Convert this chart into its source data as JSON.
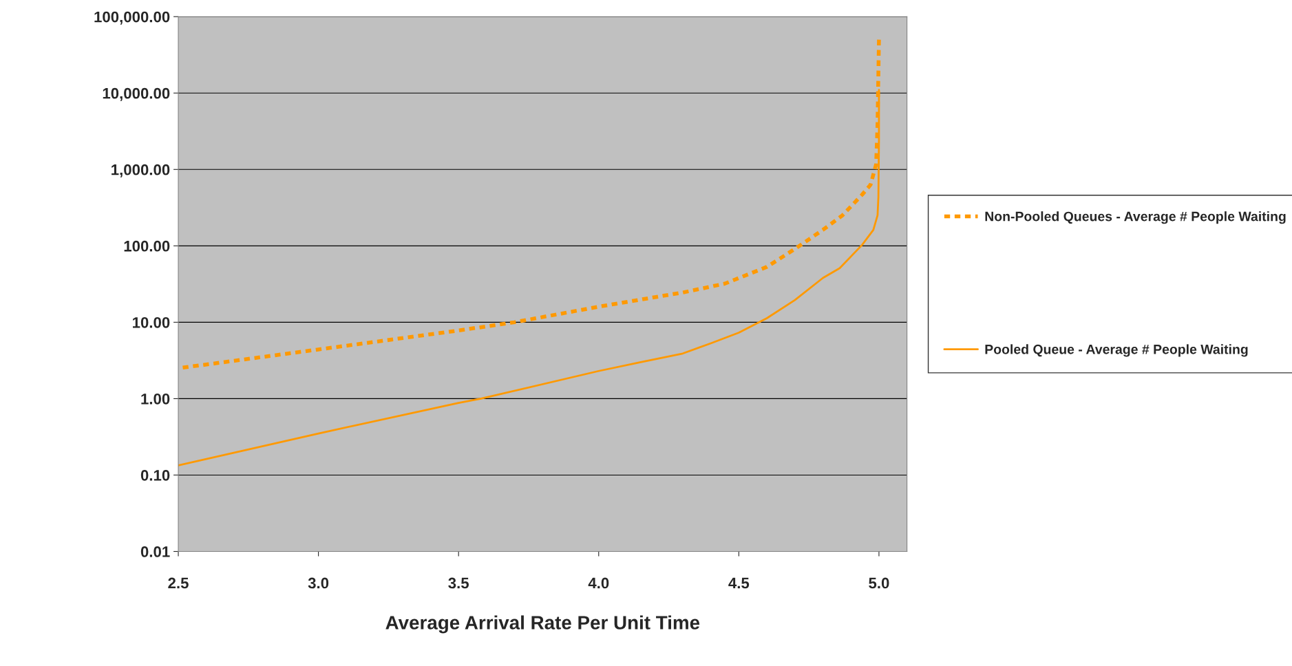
{
  "chart_data": {
    "type": "line",
    "xlabel": "Average Arrival Rate Per Unit Time",
    "log": "y",
    "grid": "y",
    "legend": "right",
    "xlim": [
      2.5,
      5.1
    ],
    "xticks": [
      2.5,
      {
        "value": 3.0,
        "label": "3.0"
      },
      3.5,
      {
        "value": 4.0,
        "label": "4.0"
      },
      4.5,
      {
        "value": 5.0,
        "label": "5.0"
      }
    ],
    "ylim": [
      0.01,
      100000
    ],
    "yticks": [
      {
        "value": 0.01,
        "label": "0.01"
      },
      {
        "value": 0.1,
        "label": "0.10"
      },
      {
        "value": 1,
        "label": "1.00"
      },
      {
        "value": 10,
        "label": "10.00"
      },
      {
        "value": 100,
        "label": "100.00"
      },
      {
        "value": 1000,
        "label": "1,000.00"
      },
      {
        "value": 10000,
        "label": "10,000.00"
      },
      {
        "value": 100000,
        "label": "100,000.00"
      }
    ],
    "series": [
      {
        "name": "Non-Pooled Queues - Average # People Waiting",
        "color": "#ff9900",
        "line_style": "dashed",
        "x": [
          2.5,
          3.0,
          3.5,
          3.7,
          4.0,
          4.3,
          4.45,
          4.6,
          4.7,
          4.8,
          4.87,
          4.94,
          4.97,
          4.99,
          4.995,
          5.0
        ],
        "values": [
          2.5,
          4.4,
          7.8,
          10,
          16,
          24.5,
          32,
          53,
          91,
          162,
          251,
          468,
          630,
          1170,
          4000,
          50000
        ]
      },
      {
        "name": "Pooled Queue - Average # People Waiting",
        "color": "#ff9900",
        "line_style": "solid",
        "x": [
          2.5,
          3.0,
          3.5,
          3.58,
          4.0,
          4.15,
          4.3,
          4.4,
          4.5,
          4.6,
          4.7,
          4.8,
          4.86,
          4.94,
          4.98,
          4.995,
          4.998,
          5.0,
          5.0
        ],
        "values": [
          0.134,
          0.35,
          0.88,
          1.0,
          2.3,
          3.0,
          3.9,
          5.3,
          7.3,
          11.3,
          19.5,
          38,
          51,
          103,
          162,
          251,
          436,
          2450,
          11000
        ]
      }
    ]
  }
}
